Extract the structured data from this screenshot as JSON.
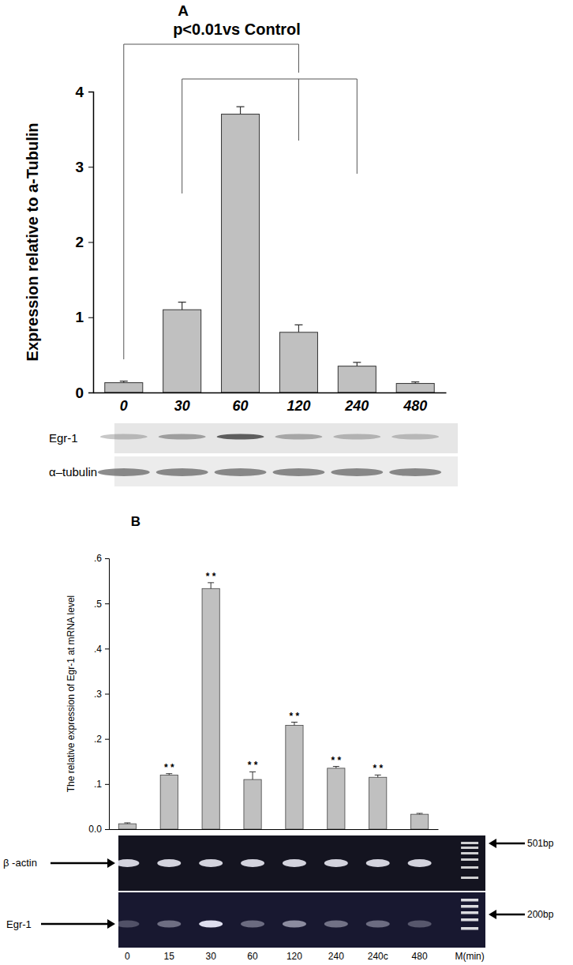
{
  "chart_data": [
    {
      "type": "bar",
      "title": "A",
      "annotation": "p<0.01vs Control",
      "y_label": "Expression relative to a-Tubulin",
      "categories": [
        "0",
        "30",
        "60",
        "120",
        "240",
        "480"
      ],
      "values": [
        0.13,
        1.1,
        3.7,
        0.8,
        0.35,
        0.12
      ],
      "errors": [
        0.02,
        0.1,
        0.1,
        0.1,
        0.05,
        0.02
      ],
      "ylim": [
        0,
        4
      ],
      "yticks": [
        0,
        1,
        2,
        3,
        4
      ],
      "color": "#c0c0c0",
      "blot_labels": [
        "Egr-1",
        "α–tubulin"
      ]
    },
    {
      "type": "bar",
      "title": "B",
      "y_label": "The relative expression of Egr-1 at mRNA level",
      "x_label": "M(min)",
      "categories": [
        "0",
        "15",
        "30",
        "60",
        "120",
        "240",
        "240c",
        "480"
      ],
      "values": [
        0.012,
        0.12,
        0.533,
        0.11,
        0.23,
        0.135,
        0.115,
        0.033
      ],
      "errors": [
        0.002,
        0.003,
        0.013,
        0.017,
        0.007,
        0.004,
        0.005,
        0.002
      ],
      "significance": [
        null,
        "* *",
        "* *",
        "* *",
        "* *",
        "* *",
        "* *",
        null
      ],
      "ylim": [
        0,
        0.6
      ],
      "yticks": [
        {
          "value": 0,
          "label": "0.0"
        },
        {
          "value": 0.1,
          "label": ".1"
        },
        {
          "value": 0.2,
          "label": ".2"
        },
        {
          "value": 0.3,
          "label": ".3"
        },
        {
          "value": 0.4,
          "label": ".4"
        },
        {
          "value": 0.5,
          "label": ".5"
        },
        {
          "value": 0.6,
          "label": ".6"
        }
      ],
      "color": "#c0c0c0",
      "gel_labels": [
        "β -actin",
        "Egr-1"
      ],
      "size_labels": [
        "501bp",
        "200bp"
      ]
    }
  ]
}
